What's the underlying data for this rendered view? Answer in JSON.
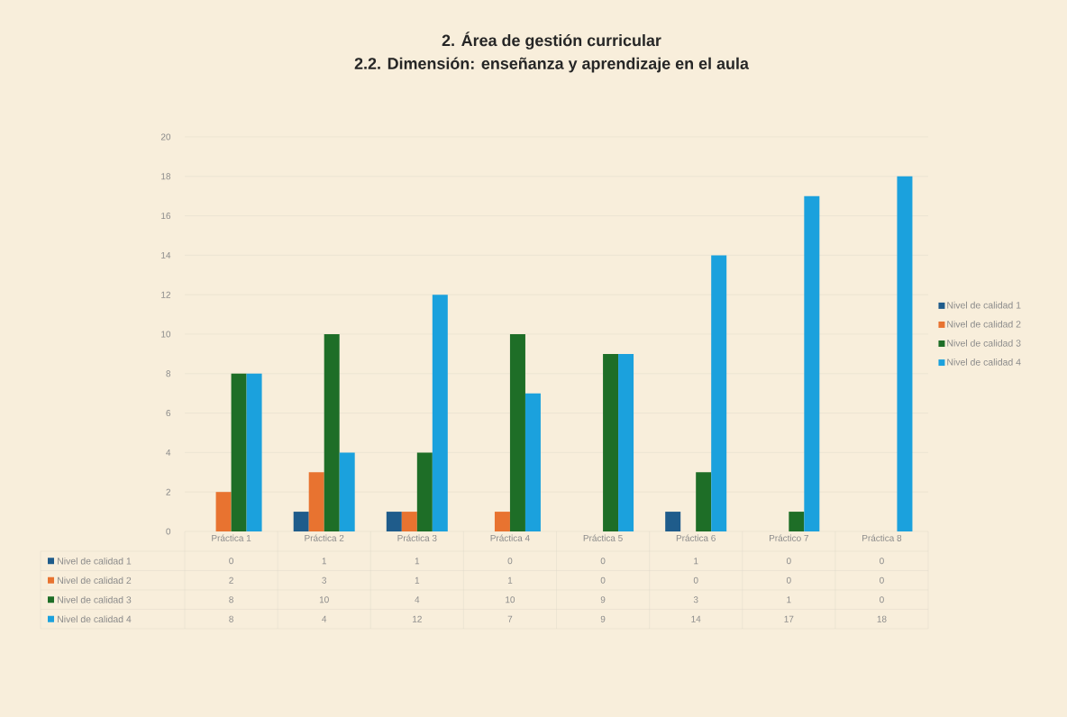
{
  "chart_data": {
    "type": "bar",
    "title": "2. Área de gestión curricular",
    "subtitle": "2.2. Dimensión: enseñanza y aprendizaje en el aula",
    "categories": [
      "Práctica 1",
      "Práctica 2",
      "Práctica 3",
      "Práctica 4",
      "Práctica 5",
      "Práctica 6",
      "Práctico 7",
      "Práctica 8"
    ],
    "series": [
      {
        "name": "Nivel de calidad 1",
        "color": "#1f5c8b",
        "values": [
          0,
          1,
          1,
          0,
          0,
          1,
          0,
          0
        ]
      },
      {
        "name": "Nivel de calidad 2",
        "color": "#e87330",
        "values": [
          2,
          3,
          1,
          1,
          0,
          0,
          0,
          0
        ]
      },
      {
        "name": "Nivel de calidad 3",
        "color": "#1e6e27",
        "values": [
          8,
          10,
          4,
          10,
          9,
          3,
          1,
          0
        ]
      },
      {
        "name": "Nivel de calidad 4",
        "color": "#1ba1dd",
        "values": [
          8,
          4,
          12,
          7,
          9,
          14,
          17,
          18
        ]
      }
    ],
    "ylim": [
      0,
      20
    ],
    "yticks": [
      0,
      2,
      4,
      6,
      8,
      10,
      12,
      14,
      16,
      18,
      20
    ],
    "grid": "y",
    "legend": "right",
    "data_labels": true
  }
}
